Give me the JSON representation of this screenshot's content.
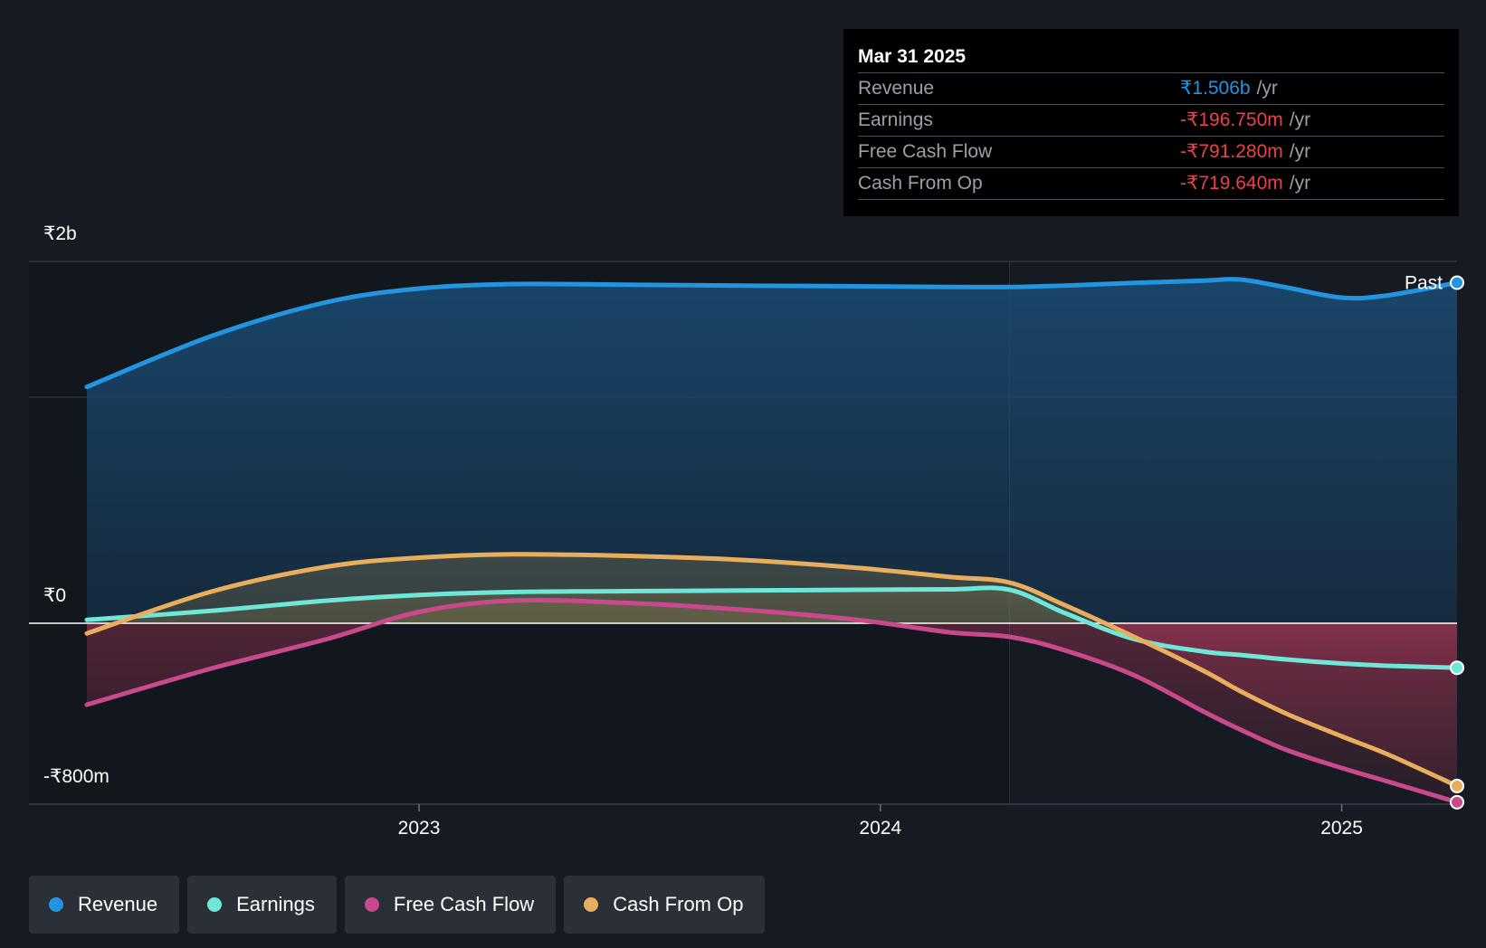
{
  "tooltip": {
    "date": "Mar 31 2025",
    "rows": [
      {
        "label": "Revenue",
        "value": "₹1.506b",
        "unit": "/yr",
        "color": "#2394df"
      },
      {
        "label": "Earnings",
        "value": "-₹196.750m",
        "unit": "/yr",
        "color": "#e9414a"
      },
      {
        "label": "Free Cash Flow",
        "value": "-₹791.280m",
        "unit": "/yr",
        "color": "#e9414a"
      },
      {
        "label": "Cash From Op",
        "value": "-₹719.640m",
        "unit": "/yr",
        "color": "#e9414a"
      }
    ]
  },
  "legend": [
    {
      "label": "Revenue",
      "color": "#2394df"
    },
    {
      "label": "Earnings",
      "color": "#6ee7d9"
    },
    {
      "label": "Free Cash Flow",
      "color": "#c84a8c"
    },
    {
      "label": "Cash From Op",
      "color": "#e8ae5e"
    }
  ],
  "chart_data": {
    "type": "area",
    "y_tick_labels": [
      "₹2b",
      "₹0",
      "-₹800m"
    ],
    "x_tick_labels": [
      "2023",
      "2024",
      "2025"
    ],
    "past_label": "Past",
    "xlim": [
      2022.28,
      2025.25
    ],
    "ylim": [
      -800,
      1600
    ],
    "x": [
      2022.28,
      2022.55,
      2022.8,
      2023.0,
      2023.2,
      2023.45,
      2023.7,
      2023.95,
      2024.15,
      2024.28,
      2024.4,
      2024.55,
      2024.7,
      2024.78,
      2024.88,
      2025.0,
      2025.1,
      2025.25
    ],
    "series": [
      {
        "name": "Revenue",
        "color": "#2394df",
        "values": [
          1045,
          1270,
          1420,
          1480,
          1500,
          1497,
          1493,
          1490,
          1487,
          1487,
          1493,
          1505,
          1515,
          1520,
          1485,
          1440,
          1450,
          1506
        ]
      },
      {
        "name": "Earnings",
        "color": "#6ee7d9",
        "values": [
          15,
          55,
          100,
          125,
          138,
          142,
          145,
          148,
          150,
          148,
          45,
          -70,
          -125,
          -140,
          -160,
          -178,
          -188,
          -196.75
        ]
      },
      {
        "name": "Free Cash Flow",
        "color": "#c84a8c",
        "values": [
          -360,
          -200,
          -70,
          50,
          100,
          90,
          60,
          15,
          -40,
          -60,
          -120,
          -230,
          -390,
          -470,
          -560,
          -640,
          -700,
          -791.28
        ]
      },
      {
        "name": "Cash From Op",
        "color": "#e8ae5e",
        "values": [
          -45,
          140,
          250,
          290,
          305,
          298,
          280,
          245,
          205,
          180,
          80,
          -60,
          -210,
          -300,
          -400,
          -500,
          -580,
          -719.64
        ]
      }
    ],
    "grid": true,
    "legend_position": "bottom-left"
  }
}
